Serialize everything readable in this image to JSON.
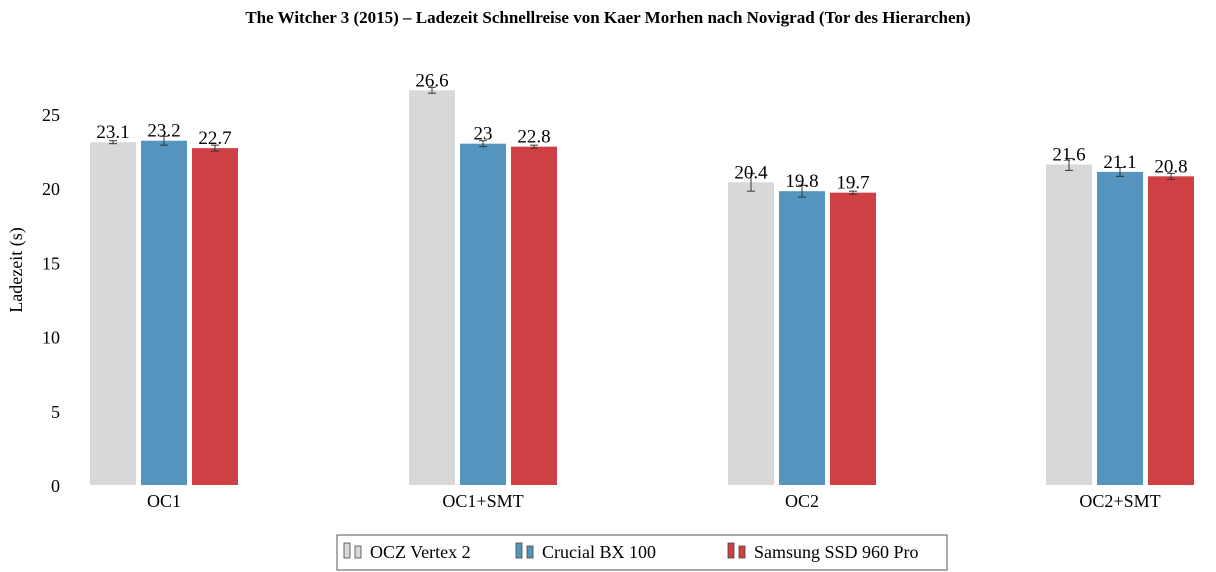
{
  "chart_data": {
    "type": "bar",
    "title": "The Witcher 3 (2015) – Ladezeit Schnellreise von Kaer Morhen nach Novigrad (Tor des Hierarchen)",
    "xlabel": "",
    "ylabel": "Ladezeit (s)",
    "ylim": [
      0,
      27.5
    ],
    "yticks": [
      0,
      5,
      10,
      15,
      20,
      25
    ],
    "grid": false,
    "legend_position": "bottom-center",
    "categories": [
      "OC1",
      "OC1+SMT",
      "OC2",
      "OC2+SMT"
    ],
    "series": [
      {
        "name": "OCZ Vertex 2",
        "color": "#d8d8d8",
        "values": [
          23.1,
          26.6,
          20.4,
          21.6
        ],
        "errors": [
          0.1,
          0.2,
          0.6,
          0.4
        ],
        "labels": [
          "23.1",
          "26.6",
          "20.4",
          "21.6"
        ]
      },
      {
        "name": "Crucial BX 100",
        "color": "#5694c0",
        "values": [
          23.2,
          23.0,
          19.8,
          21.1
        ],
        "errors": [
          0.3,
          0.2,
          0.4,
          0.3
        ],
        "labels": [
          "23.2",
          "23",
          "19.8",
          "21.1"
        ]
      },
      {
        "name": "Samsung SSD 960 Pro",
        "color": "#cf4044",
        "values": [
          22.7,
          22.8,
          19.7,
          20.8
        ],
        "errors": [
          0.2,
          0.1,
          0.1,
          0.2
        ],
        "labels": [
          "22.7",
          "22.8",
          "19.7",
          "20.8"
        ]
      }
    ]
  }
}
